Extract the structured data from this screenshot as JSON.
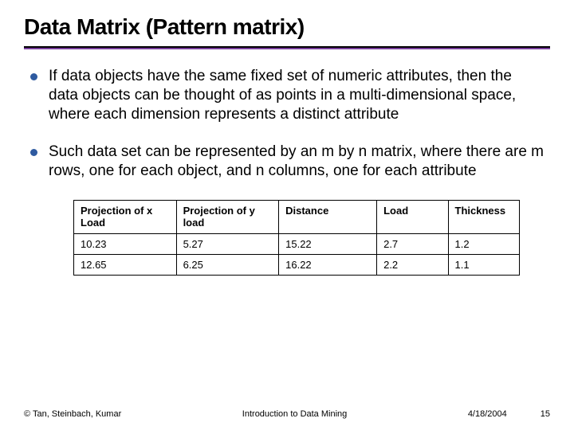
{
  "title": "Data Matrix (Pattern matrix)",
  "bullets": [
    "If data objects have the same fixed set of numeric attributes, then the data objects can be thought of as points in a multi-dimensional space, where each dimension represents a distinct attribute",
    "Such data set can be represented by an m by n matrix, where there are m rows, one for each object, and n columns, one for each attribute"
  ],
  "table": {
    "columns": [
      "Projection of x Load",
      "Projection of y load",
      "Distance",
      "Load",
      "Thickness"
    ],
    "col_widths": [
      "23%",
      "23%",
      "22%",
      "16%",
      "16%"
    ],
    "rows": [
      [
        "10.23",
        "5.27",
        "15.22",
        "2.7",
        "1.2"
      ],
      [
        "12.65",
        "6.25",
        "16.22",
        "2.2",
        "1.1"
      ]
    ]
  },
  "footer": {
    "left": "© Tan, Steinbach, Kumar",
    "center": "Introduction to Data Mining",
    "date": "4/18/2004",
    "page": "15"
  },
  "colors": {
    "bullet": "#2e5aa0",
    "rule_bottom": "#7a3f9e"
  }
}
